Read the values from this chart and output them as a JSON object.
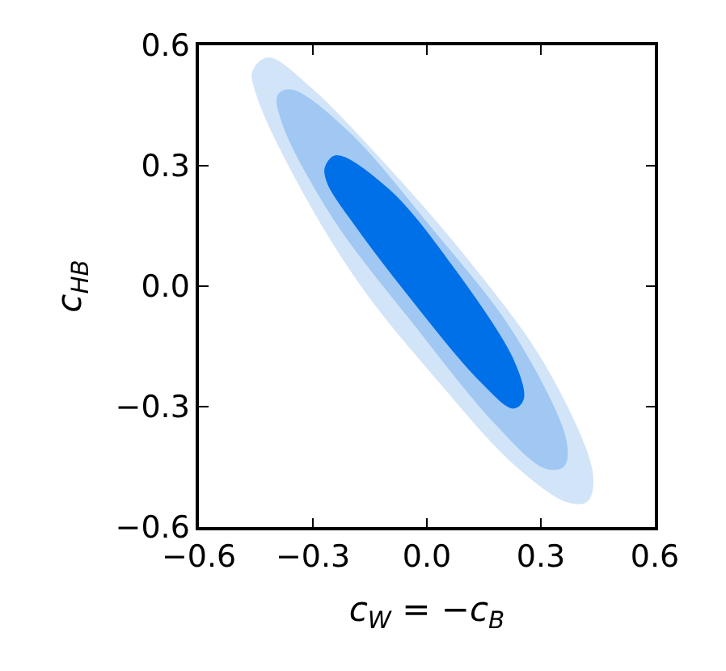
{
  "chart_data": {
    "type": "area",
    "xlabel": "c$_{W}$ = −c$_{B}$",
    "ylabel": "c$_{HB}$",
    "series": [
      {
        "color": "#d2e4f8",
        "x": [
          -0.457,
          -0.418,
          -0.308,
          -0.102,
          0.105,
          0.311,
          0.435,
          0.421,
          0.366,
          0.228,
          0.036,
          -0.171,
          -0.336,
          -0.446
        ],
        "values": [
          0.535,
          0.568,
          0.495,
          0.294,
          0.067,
          -0.2,
          -0.468,
          -0.535,
          -0.535,
          -0.441,
          -0.241,
          0,
          0.254,
          0.475
        ]
      },
      {
        "color": "#a0c8f2",
        "x": [
          -0.391,
          -0.356,
          -0.212,
          0.008,
          0.228,
          0.366,
          0.359,
          0.311,
          0.173,
          -0.033,
          -0.239,
          -0.377
        ],
        "values": [
          0.475,
          0.488,
          0.388,
          0.147,
          -0.12,
          -0.388,
          -0.448,
          -0.452,
          -0.334,
          -0.094,
          0.16,
          0.401
        ]
      },
      {
        "color": "#0070e8",
        "x": [
          -0.267,
          -0.239,
          -0.102,
          0.063,
          0.228,
          0.253,
          0.228,
          0.132,
          -0.033,
          -0.184,
          -0.259
        ],
        "values": [
          0.294,
          0.324,
          0.241,
          0.053,
          -0.187,
          -0.281,
          -0.303,
          -0.227,
          -0.04,
          0.147,
          0.254
        ]
      }
    ],
    "xlim": [
      -0.6,
      0.6
    ],
    "ylim": [
      -0.6,
      0.6
    ],
    "xticks": [
      {
        "value": -0.6,
        "label": "−0.6"
      },
      {
        "value": -0.3,
        "label": "−0.3"
      },
      {
        "value": 0,
        "label": "0.0"
      },
      {
        "value": 0.3,
        "label": "0.3"
      },
      {
        "value": 0.6,
        "label": "0.6"
      }
    ],
    "yticks": [
      {
        "value": -0.6,
        "label": "−0.6"
      },
      {
        "value": -0.3,
        "label": "−0.3"
      },
      {
        "value": 0,
        "label": "0.0"
      },
      {
        "value": 0.3,
        "label": "0.3"
      },
      {
        "value": 0.6,
        "label": "0.6"
      }
    ]
  }
}
